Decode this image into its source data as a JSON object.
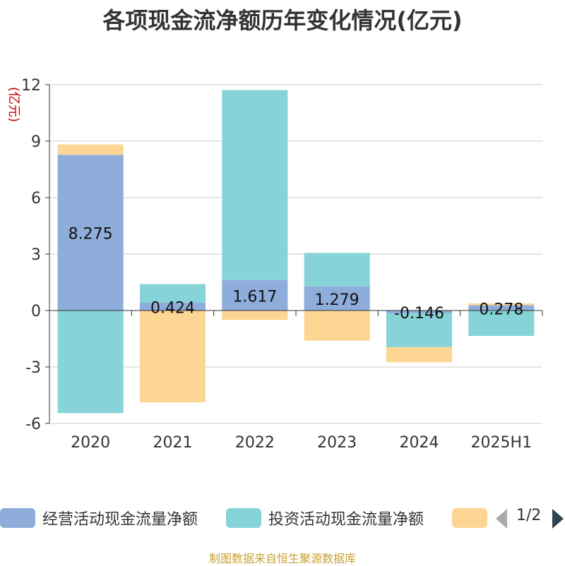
{
  "chart_data": {
    "type": "bar",
    "stacked": true,
    "title": "各项现金流净额历年变化情况(亿元)",
    "ylabel": "(亿元)",
    "xlabel": "",
    "categories": [
      "2020",
      "2021",
      "2022",
      "2023",
      "2024",
      "2025H1"
    ],
    "ylim": [
      -6,
      12
    ],
    "yticks": [
      -6,
      -3,
      0,
      3,
      6,
      9,
      12
    ],
    "grid": true,
    "legend_position": "bottom",
    "series": [
      {
        "name": "经营活动现金流量净额",
        "color": "#8eaddb",
        "values": [
          8.275,
          0.424,
          1.617,
          1.279,
          -0.146,
          0.278
        ],
        "labels": [
          "8.275",
          "0.424",
          "1.617",
          "1.279",
          "-0.146",
          "0.278"
        ]
      },
      {
        "name": "投资活动现金流量净额",
        "color": "#86d4d8",
        "values": [
          -5.45,
          0.98,
          10.1,
          1.78,
          -1.8,
          -1.35
        ]
      },
      {
        "name": "",
        "color": "#fdd693",
        "values": [
          0.55,
          -4.88,
          -0.5,
          -1.6,
          -0.8,
          0.1
        ]
      }
    ]
  },
  "legend": {
    "items": [
      {
        "label": "经营活动现金流量净额",
        "color": "#8eaddb"
      },
      {
        "label": "投资活动现金流量净额",
        "color": "#86d4d8"
      },
      {
        "label": "",
        "color": "#fdd693"
      }
    ],
    "page_indicator": "1/2"
  },
  "footer": {
    "source_note": "制图数据来自恒生聚源数据库"
  }
}
